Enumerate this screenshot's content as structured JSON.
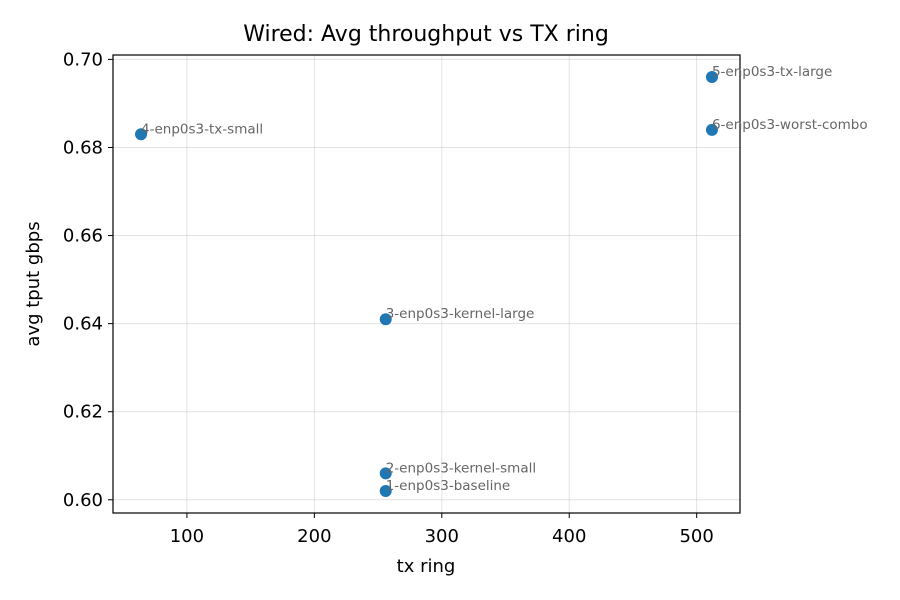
{
  "chart_data": {
    "type": "scatter",
    "title": "Wired: Avg throughput vs TX ring",
    "xlabel": "tx ring",
    "ylabel": "avg tput gbps",
    "xlim": [
      42,
      534
    ],
    "ylim": [
      0.597,
      0.701
    ],
    "xticks": [
      100,
      200,
      300,
      400,
      500
    ],
    "yticks": [
      0.6,
      0.62,
      0.64,
      0.66,
      0.68,
      0.7
    ],
    "ytick_labels": [
      "0.60",
      "0.62",
      "0.64",
      "0.66",
      "0.68",
      "0.70"
    ],
    "grid": true,
    "marker_color": "#1f77b4",
    "label_color": "#666666",
    "points": [
      {
        "x": 256,
        "y": 0.602,
        "label": "1-enp0s3-baseline"
      },
      {
        "x": 256,
        "y": 0.606,
        "label": "2-enp0s3-kernel-small"
      },
      {
        "x": 256,
        "y": 0.641,
        "label": "3-enp0s3-kernel-large"
      },
      {
        "x": 64,
        "y": 0.683,
        "label": "4-enp0s3-tx-small"
      },
      {
        "x": 512,
        "y": 0.696,
        "label": "5-enp0s3-tx-large"
      },
      {
        "x": 512,
        "y": 0.684,
        "label": "6-enp0s3-worst-combo"
      }
    ]
  }
}
